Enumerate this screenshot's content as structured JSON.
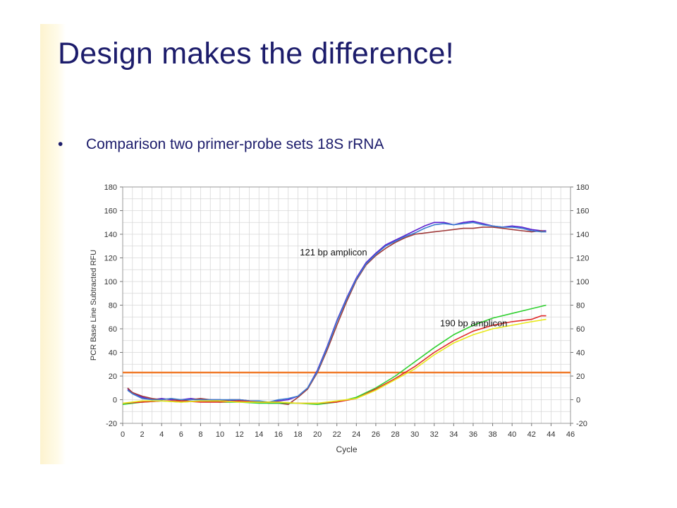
{
  "slide": {
    "title": "Design makes the difference!",
    "bullet_symbol": "•",
    "bullet_text": "Comparison two primer-probe sets 18S rRNA"
  },
  "chart_data": {
    "type": "line",
    "xlabel": "Cycle",
    "ylabel": "PCR Base Line Subtracted RFU",
    "xlim": [
      0,
      46
    ],
    "ylim": [
      -20,
      180
    ],
    "x_ticks": [
      0,
      2,
      4,
      6,
      8,
      10,
      12,
      14,
      16,
      18,
      20,
      22,
      24,
      26,
      28,
      30,
      32,
      34,
      36,
      38,
      40,
      42,
      44,
      46
    ],
    "y_ticks": [
      -20,
      0,
      20,
      40,
      60,
      80,
      100,
      120,
      140,
      160,
      180
    ],
    "grid": true,
    "annotations": [
      {
        "text": "121 bp amplicon",
        "x": 18.2,
        "y": 122
      },
      {
        "text": "190 bp amplicon",
        "x": 32.6,
        "y": 62
      }
    ],
    "threshold": {
      "y": 23,
      "color": "#f07a2a"
    },
    "series": [
      {
        "color": "#5a1fd0",
        "x": [
          0.5,
          1,
          2,
          3,
          4,
          5,
          6,
          7,
          8,
          9,
          10,
          11,
          12,
          13,
          14,
          15,
          16,
          17,
          18,
          19,
          20,
          21,
          22,
          23,
          24,
          25,
          26,
          27,
          28,
          29,
          30,
          31,
          32,
          33,
          34,
          35,
          36,
          37,
          38,
          39,
          40,
          41,
          42,
          43,
          43.5
        ],
        "y": [
          9,
          6,
          2,
          0,
          1,
          0,
          0,
          1,
          0,
          0,
          0,
          -1,
          0,
          -1,
          -2,
          -2,
          -1,
          0,
          3,
          10,
          25,
          45,
          67,
          86,
          103,
          116,
          124,
          131,
          135,
          139,
          143,
          147,
          150,
          150,
          148,
          150,
          151,
          149,
          147,
          146,
          147,
          146,
          144,
          143,
          143
        ]
      },
      {
        "color": "#a03a3a",
        "x": [
          0.5,
          1,
          2,
          3,
          4,
          5,
          6,
          7,
          8,
          9,
          10,
          11,
          12,
          13,
          14,
          15,
          16,
          17,
          18,
          19,
          20,
          21,
          22,
          23,
          24,
          25,
          26,
          27,
          28,
          29,
          30,
          31,
          32,
          33,
          34,
          35,
          36,
          37,
          38,
          39,
          40,
          41,
          42,
          43,
          43.5
        ],
        "y": [
          10,
          6,
          3,
          1,
          0,
          1,
          -1,
          0,
          1,
          0,
          -1,
          0,
          0,
          -1,
          -2,
          -3,
          -3,
          -4,
          2,
          9,
          23,
          42,
          63,
          83,
          101,
          114,
          122,
          128,
          133,
          137,
          140,
          141,
          142,
          143,
          144,
          145,
          145,
          146,
          146,
          145,
          144,
          143,
          142,
          143,
          142
        ]
      },
      {
        "color": "#3a7cd0",
        "x": [
          0.5,
          1,
          2,
          3,
          4,
          5,
          6,
          7,
          8,
          9,
          10,
          11,
          12,
          13,
          14,
          15,
          16,
          17,
          18,
          19,
          20,
          21,
          22,
          23,
          24,
          25,
          26,
          27,
          28,
          29,
          30,
          31,
          32,
          33,
          34,
          35,
          36,
          37,
          38,
          39,
          40,
          41,
          42,
          43,
          43.5
        ],
        "y": [
          8,
          5,
          1,
          0,
          0,
          1,
          0,
          0,
          0,
          0,
          0,
          0,
          0,
          -1,
          -1,
          -2,
          0,
          1,
          3,
          10,
          24,
          44,
          66,
          85,
          102,
          115,
          123,
          130,
          134,
          138,
          141,
          145,
          148,
          149,
          148,
          149,
          150,
          148,
          147,
          146,
          146,
          145,
          143,
          142,
          142
        ]
      },
      {
        "color": "#30d030",
        "x": [
          0,
          2,
          4,
          6,
          8,
          10,
          12,
          14,
          16,
          18,
          20,
          22,
          24,
          26,
          28,
          30,
          32,
          34,
          36,
          38,
          40,
          42,
          43.5
        ],
        "y": [
          -4,
          -2,
          -1,
          -2,
          -1,
          -2,
          -2,
          -3,
          -3,
          -3,
          -4,
          -2,
          2,
          10,
          20,
          32,
          44,
          55,
          63,
          69,
          73,
          77,
          80
        ]
      },
      {
        "color": "#e02a2a",
        "x": [
          0,
          2,
          4,
          6,
          8,
          10,
          12,
          14,
          16,
          18,
          20,
          22,
          24,
          26,
          28,
          30,
          32,
          34,
          36,
          38,
          40,
          42,
          43,
          43.5
        ],
        "y": [
          -3,
          -2,
          -1,
          -1,
          -2,
          -2,
          -1,
          -2,
          -2,
          -3,
          -3,
          -2,
          1,
          9,
          18,
          28,
          40,
          50,
          58,
          63,
          66,
          68,
          71,
          71
        ]
      },
      {
        "color": "#e8e81a",
        "x": [
          0,
          2,
          4,
          6,
          8,
          10,
          12,
          14,
          16,
          18,
          20,
          22,
          24,
          26,
          28,
          30,
          32,
          34,
          36,
          38,
          40,
          42,
          43.5
        ],
        "y": [
          -3,
          -1,
          -1,
          -2,
          -1,
          -1,
          -2,
          -2,
          -2,
          -3,
          -3,
          -1,
          1,
          8,
          17,
          26,
          38,
          48,
          55,
          60,
          63,
          66,
          68
        ]
      }
    ]
  }
}
